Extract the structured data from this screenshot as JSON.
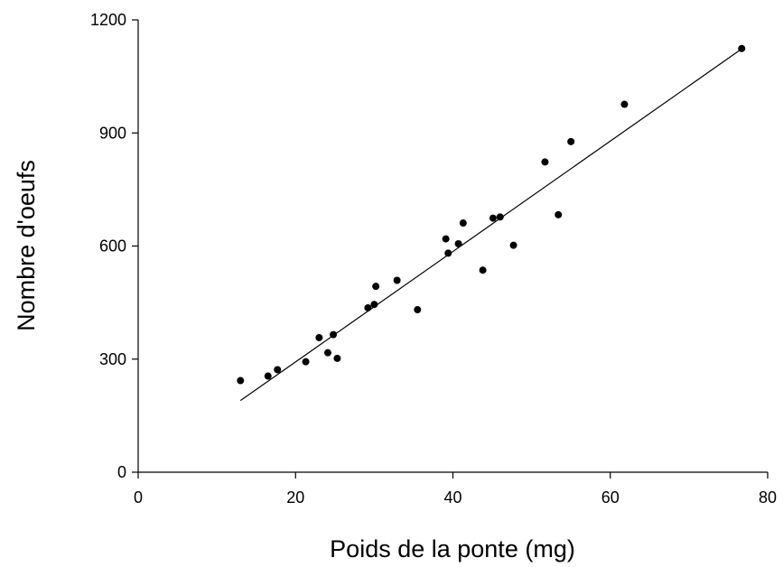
{
  "chart_data": {
    "type": "scatter",
    "title": "",
    "xlabel": "Poids de la ponte (mg)",
    "ylabel": "Nombre d'oeufs",
    "xlim": [
      0,
      80
    ],
    "ylim": [
      0,
      1200
    ],
    "xticks": [
      0,
      20,
      40,
      60,
      80
    ],
    "yticks": [
      0,
      300,
      600,
      900,
      1200
    ],
    "grid": false,
    "legend": "none",
    "point_color": "#000000",
    "line_color": "#000000",
    "points": [
      {
        "x": 13.0,
        "y": 243
      },
      {
        "x": 16.5,
        "y": 255
      },
      {
        "x": 17.7,
        "y": 272
      },
      {
        "x": 21.3,
        "y": 293
      },
      {
        "x": 23.0,
        "y": 357
      },
      {
        "x": 24.1,
        "y": 317
      },
      {
        "x": 24.8,
        "y": 365
      },
      {
        "x": 25.3,
        "y": 302
      },
      {
        "x": 29.2,
        "y": 436
      },
      {
        "x": 30.0,
        "y": 445
      },
      {
        "x": 30.2,
        "y": 493
      },
      {
        "x": 32.9,
        "y": 509
      },
      {
        "x": 35.5,
        "y": 431
      },
      {
        "x": 39.1,
        "y": 619
      },
      {
        "x": 39.4,
        "y": 581
      },
      {
        "x": 40.7,
        "y": 606
      },
      {
        "x": 41.3,
        "y": 661
      },
      {
        "x": 43.8,
        "y": 536
      },
      {
        "x": 45.1,
        "y": 674
      },
      {
        "x": 46.0,
        "y": 677
      },
      {
        "x": 47.7,
        "y": 602
      },
      {
        "x": 51.7,
        "y": 823
      },
      {
        "x": 53.4,
        "y": 683
      },
      {
        "x": 55.0,
        "y": 877
      },
      {
        "x": 61.8,
        "y": 976
      },
      {
        "x": 76.7,
        "y": 1124
      }
    ],
    "regression_line": {
      "x": [
        13.0,
        76.5
      ],
      "y": [
        190,
        1120
      ]
    }
  }
}
